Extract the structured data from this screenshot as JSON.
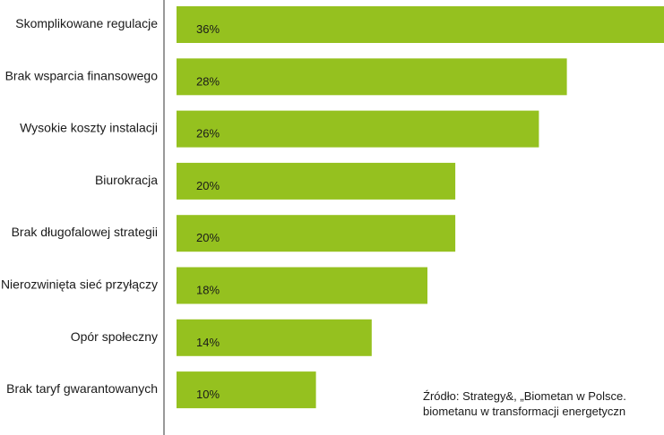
{
  "chart_data": {
    "type": "bar",
    "orientation": "horizontal",
    "categories": [
      "Skomplikowane regulacje",
      "Brak wsparcia finansowego",
      "Wysokie koszty instalacji",
      "Biurokracja",
      "Brak długofalowej strategii",
      "Nierozwinięta sieć przyłączy",
      "Opór społeczny",
      "Brak taryf gwarantowanych"
    ],
    "values": [
      36,
      28,
      26,
      20,
      20,
      18,
      14,
      10
    ],
    "value_labels": [
      "36%",
      "28%",
      "26%",
      "20%",
      "20%",
      "18%",
      "14%",
      "10%"
    ],
    "xlim": [
      0,
      36
    ],
    "bar_color": "#95c11f",
    "grid": false
  },
  "source": {
    "line1": "Źródło: Strategy&, „Biometan w Polsce.",
    "line2": "biometanu w transformacji energetyczn"
  }
}
